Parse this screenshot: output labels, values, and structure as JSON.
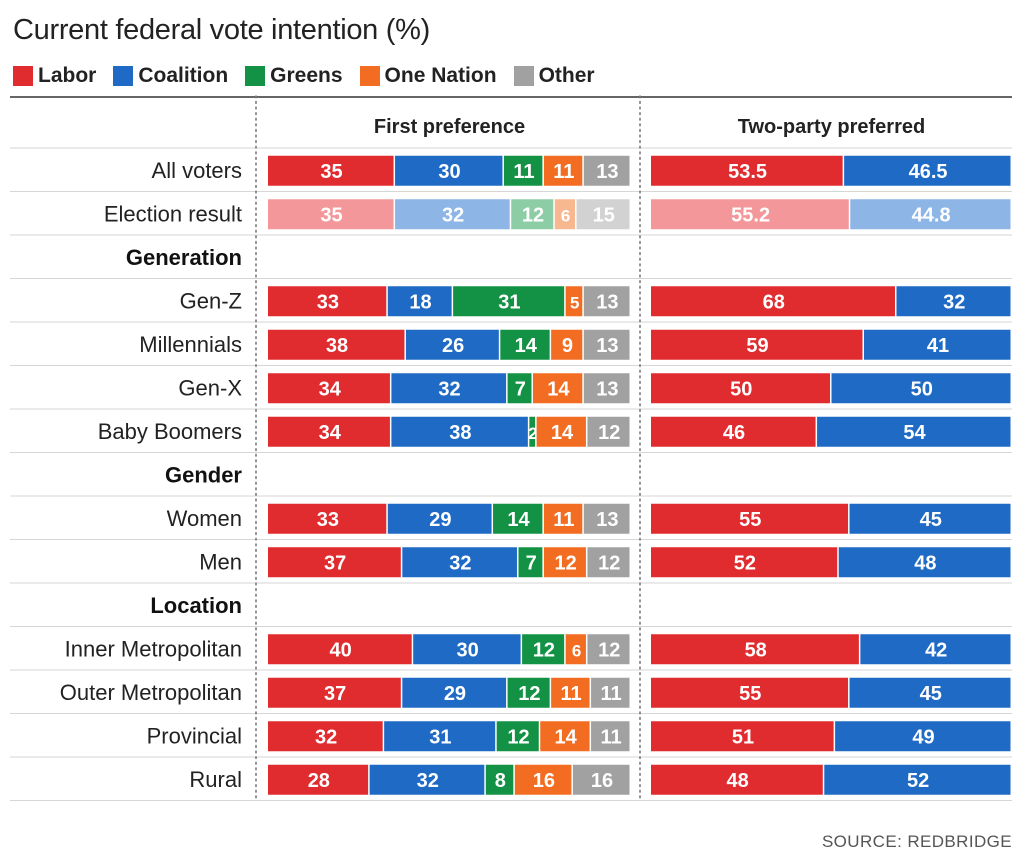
{
  "title": "Current federal vote intention (%)",
  "source": "SOURCE: REDBRIDGE",
  "legend": [
    {
      "name": "Labor",
      "color": "#e02b2f"
    },
    {
      "name": "Coalition",
      "color": "#1f6ac4"
    },
    {
      "name": "Greens",
      "color": "#139245"
    },
    {
      "name": "One Nation",
      "color": "#f26d22"
    },
    {
      "name": "Other",
      "color": "#a1a1a1"
    }
  ],
  "chart_data": {
    "type": "bar",
    "stacked": true,
    "orientation": "horizontal",
    "panels": [
      {
        "title": "First preference",
        "series": [
          "Labor",
          "Coalition",
          "Greens",
          "One Nation",
          "Other"
        ]
      },
      {
        "title": "Two-party preferred",
        "series": [
          "Labor",
          "Coalition"
        ]
      }
    ],
    "rows": [
      {
        "kind": "data",
        "label": "All voters",
        "first": [
          35,
          30,
          11,
          11,
          13
        ],
        "tpp": [
          53.5,
          46.5
        ]
      },
      {
        "kind": "data",
        "label": "Election result",
        "faded": true,
        "first": [
          35,
          32,
          12,
          6,
          15
        ],
        "tpp": [
          55.2,
          44.8
        ]
      },
      {
        "kind": "header",
        "label": "Generation"
      },
      {
        "kind": "data",
        "label": "Gen-Z",
        "first": [
          33,
          18,
          31,
          5,
          13
        ],
        "tpp": [
          68,
          32
        ]
      },
      {
        "kind": "data",
        "label": "Millennials",
        "first": [
          38,
          26,
          14,
          9,
          13
        ],
        "tpp": [
          59,
          41
        ]
      },
      {
        "kind": "data",
        "label": "Gen-X",
        "first": [
          34,
          32,
          7,
          14,
          13
        ],
        "tpp": [
          50,
          50
        ]
      },
      {
        "kind": "data",
        "label": "Baby Boomers",
        "first": [
          34,
          38,
          2,
          14,
          12
        ],
        "tpp": [
          46,
          54
        ]
      },
      {
        "kind": "header",
        "label": "Gender"
      },
      {
        "kind": "data",
        "label": "Women",
        "first": [
          33,
          29,
          14,
          11,
          13
        ],
        "tpp": [
          55,
          45
        ]
      },
      {
        "kind": "data",
        "label": "Men",
        "first": [
          37,
          32,
          7,
          12,
          12
        ],
        "tpp": [
          52,
          48
        ]
      },
      {
        "kind": "header",
        "label": "Location"
      },
      {
        "kind": "data",
        "label": "Inner Metropolitan",
        "first": [
          40,
          30,
          12,
          6,
          12
        ],
        "tpp": [
          58,
          42
        ]
      },
      {
        "kind": "data",
        "label": "Outer Metropolitan",
        "first": [
          37,
          29,
          12,
          11,
          11
        ],
        "tpp": [
          55,
          45
        ]
      },
      {
        "kind": "data",
        "label": "Provincial",
        "first": [
          32,
          31,
          12,
          14,
          11
        ],
        "tpp": [
          51,
          49
        ]
      },
      {
        "kind": "data",
        "label": "Rural",
        "first": [
          28,
          32,
          8,
          16,
          16
        ],
        "tpp": [
          48,
          52
        ]
      }
    ],
    "faded_colors": [
      "#f4979a",
      "#8db6e7",
      "#8dcda5",
      "#f8b88f",
      "#d2d2d2"
    ]
  }
}
